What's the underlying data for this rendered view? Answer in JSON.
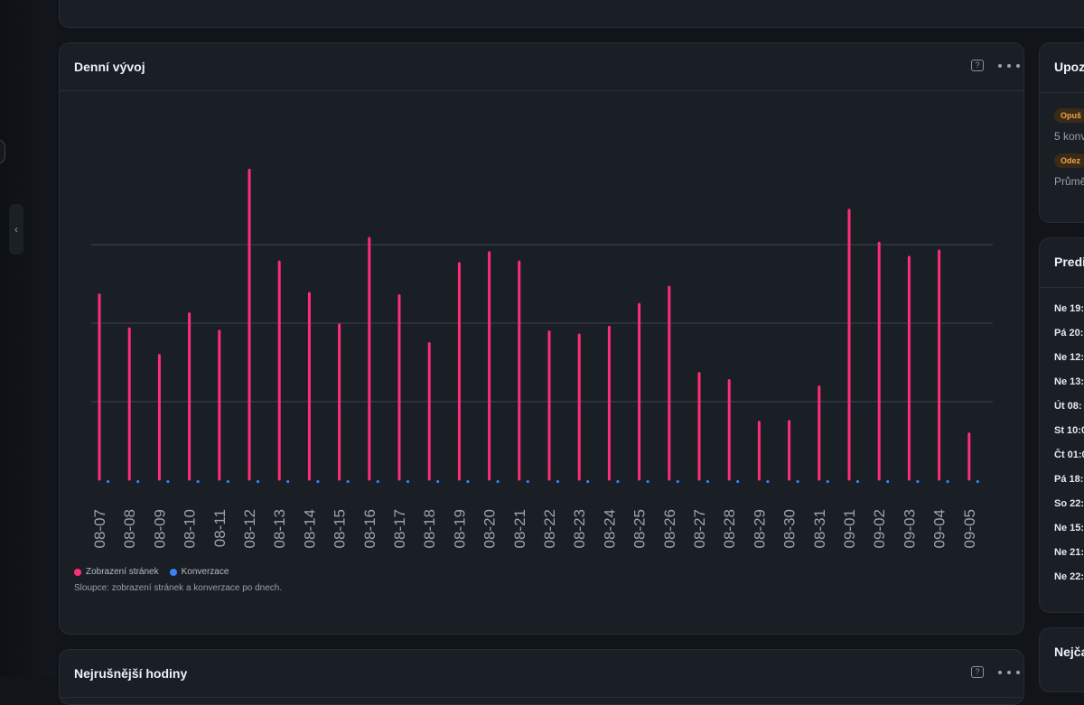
{
  "main_card": {
    "title": "Denní vývoj",
    "legend": [
      {
        "label": "Zobrazení stránek",
        "color": "#ff2d78"
      },
      {
        "label": "Konverzace",
        "color": "#3b82f6"
      }
    ],
    "caption": "Sloupce: zobrazení stránek a konverzace po dnech."
  },
  "bottom_card": {
    "title": "Nejrušnější hodiny"
  },
  "right_cards": {
    "alerts": {
      "title": "Upoz",
      "items": [
        {
          "badge": "Opuš",
          "text": "5 konv"
        },
        {
          "badge": "Odez",
          "text": "Průmě"
        }
      ]
    },
    "predictions": {
      "title": "Predi",
      "items": [
        "Ne 19:",
        "Pá 20:",
        "Ne 12:",
        "Ne 13:",
        "Út 08:",
        "St 10:0",
        "Čt 01:0",
        "Pá 18:",
        "So 22:",
        "Ne 15:",
        "Ne 21:",
        "Ne 22:"
      ]
    },
    "third": {
      "title": "Nejča"
    }
  },
  "chart_data": {
    "type": "bar",
    "categories": [
      "08-07",
      "08-08",
      "08-09",
      "08-10",
      "08-11",
      "08-12",
      "08-13",
      "08-14",
      "08-15",
      "08-16",
      "08-17",
      "08-18",
      "08-19",
      "08-20",
      "08-21",
      "08-22",
      "08-23",
      "08-24",
      "08-25",
      "08-26",
      "08-27",
      "08-28",
      "08-29",
      "08-30",
      "08-31",
      "09-01",
      "09-02",
      "09-03",
      "09-04",
      "09-05"
    ],
    "series": [
      {
        "name": "Zobrazení stránek",
        "color": "#ff2d78",
        "values": [
          236,
          193,
          159,
          212,
          190,
          395,
          278,
          238,
          198,
          308,
          235,
          174,
          276,
          290,
          278,
          189,
          185,
          195,
          224,
          246,
          136,
          127,
          74,
          75,
          119,
          344,
          302,
          284,
          292,
          59
        ]
      },
      {
        "name": "Konverzace",
        "color": "#3b82f6",
        "values": [
          1,
          1,
          1,
          1,
          1,
          1,
          1,
          1,
          1,
          1,
          1,
          1,
          1,
          1,
          1,
          1,
          1,
          1,
          1,
          1,
          1,
          1,
          1,
          1,
          1,
          1,
          1,
          1,
          1,
          1
        ]
      }
    ],
    "ylim": [
      0,
      400
    ],
    "grid": true,
    "legend_position": "bottom-left"
  }
}
